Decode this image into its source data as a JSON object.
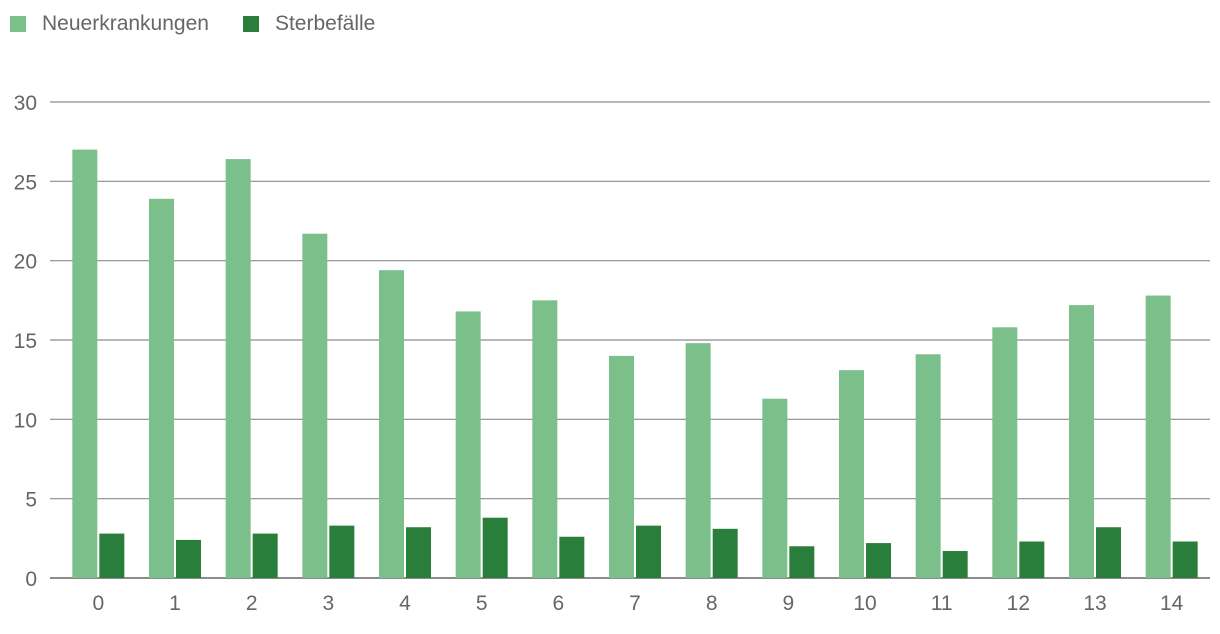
{
  "chart_data": {
    "type": "bar",
    "categories": [
      "0",
      "1",
      "2",
      "3",
      "4",
      "5",
      "6",
      "7",
      "8",
      "9",
      "10",
      "11",
      "12",
      "13",
      "14"
    ],
    "series": [
      {
        "name": "Neuerkrankungen",
        "color": "#7bbf8a",
        "values": [
          27.0,
          23.9,
          26.4,
          21.7,
          19.4,
          16.8,
          17.5,
          14.0,
          14.8,
          11.3,
          13.1,
          14.1,
          15.8,
          17.2,
          17.8
        ]
      },
      {
        "name": "Sterbefälle",
        "color": "#2a7e3b",
        "values": [
          2.8,
          2.4,
          2.8,
          3.3,
          3.2,
          3.8,
          2.6,
          3.3,
          3.1,
          2.0,
          2.2,
          1.7,
          2.3,
          3.2,
          2.3
        ]
      }
    ],
    "ylim": [
      0,
      30
    ],
    "yticks": [
      0,
      5,
      10,
      15,
      20,
      25,
      30
    ],
    "grid": true,
    "legend_position": "top-left",
    "title": "",
    "xlabel": "",
    "ylabel": ""
  }
}
